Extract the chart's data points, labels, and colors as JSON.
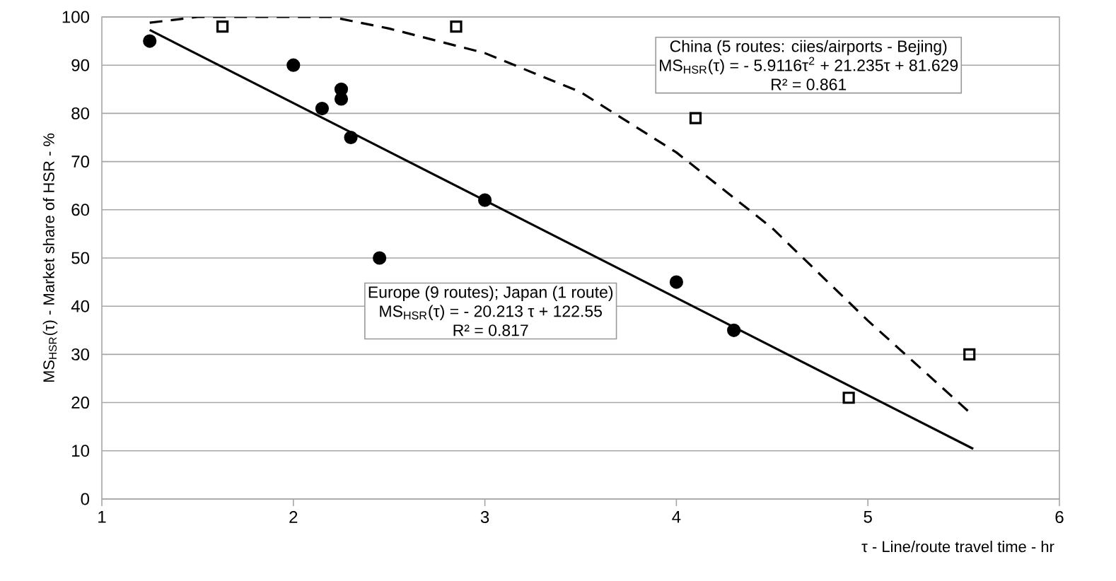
{
  "chart_data": {
    "type": "scatter",
    "xlabel": "τ - Line/route travel time - hr",
    "ylabel": "MS$_{HSR}$(τ) - Market share of HSR - %",
    "xlim": [
      1,
      6
    ],
    "ylim": [
      0,
      100
    ],
    "xticks": [
      1,
      2,
      3,
      4,
      5,
      6
    ],
    "yticks": [
      0,
      10,
      20,
      30,
      40,
      50,
      60,
      70,
      80,
      90,
      100
    ],
    "grid": "y",
    "series": [
      {
        "marker": "circle",
        "color": "#000000",
        "x": [
          1.25,
          2.0,
          2.15,
          2.25,
          2.25,
          2.3,
          2.45,
          3.0,
          4.0,
          4.3
        ],
        "values": [
          95,
          90,
          81,
          85,
          83,
          75,
          50,
          62,
          45,
          35
        ]
      },
      {
        "marker": "square",
        "color": "#000000",
        "x": [
          1.63,
          2.85,
          4.1,
          4.9,
          5.53
        ],
        "values": [
          98,
          98,
          79,
          21,
          30
        ]
      },
      {
        "type": "line",
        "marker": "none",
        "line_style": "solid",
        "color": "#000000",
        "x": [
          1.25,
          5.55
        ],
        "values": [
          97.3,
          10.4
        ]
      },
      {
        "type": "line",
        "marker": "none",
        "line_style": "dashed",
        "color": "#000000",
        "x": [
          1.25,
          1.5,
          1.8,
          2.2,
          2.5,
          3.0,
          3.5,
          4.0,
          4.5,
          5.0,
          5.53
        ],
        "values": [
          98.8,
          100,
          100,
          100,
          97.6,
          92.5,
          84.4,
          71.9,
          56.2,
          37,
          18
        ]
      }
    ],
    "annotations": [
      "Europe (9 routes); Japan (1 route)",
      "MS$_{HSR}$(τ) = - 20.213 τ + 122.55",
      "R² = 0.817",
      "China (5 routes: ciies/airports - Bejing)",
      "MS$_{HSR}$(τ) = - 5.9116τ$^{2}$ + 21.235τ + 81.629",
      "R² = 0.861"
    ]
  }
}
